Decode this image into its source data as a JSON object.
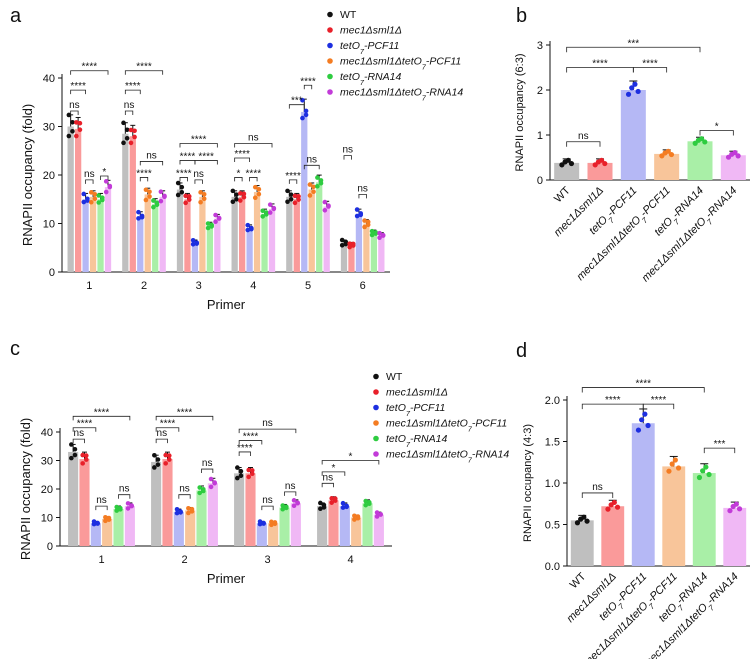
{
  "chart_data": [
    {
      "panel": "a",
      "type": "bar",
      "ylabel": "RNAPII occupancy (fold)",
      "xlabel": "Primer",
      "ylim": [
        0,
        40
      ],
      "yticks": [
        0,
        10,
        20,
        30,
        40
      ],
      "categories": [
        "1",
        "2",
        "3",
        "4",
        "5",
        "6"
      ],
      "legend_position": "top-right",
      "series": [
        {
          "name": "WT",
          "values": [
            30,
            28.5,
            17,
            15.5,
            15.5,
            6
          ]
        },
        {
          "name": "mec1Δsml1Δ",
          "values": [
            29.5,
            28,
            15,
            15.5,
            15,
            5.5
          ]
        },
        {
          "name": "tetO7-PCF11",
          "values": [
            15,
            11.5,
            6,
            9,
            33,
            12
          ]
        },
        {
          "name": "mec1Δsml1ΔtetO7-PCF11",
          "values": [
            15.5,
            16,
            15.5,
            16.5,
            17,
            10
          ]
        },
        {
          "name": "tetO7-RNA14",
          "values": [
            15,
            14,
            9.5,
            12,
            18.5,
            8
          ]
        },
        {
          "name": "mec1Δsml1ΔtetO7-RNA14",
          "values": [
            17.5,
            15.5,
            11,
            13,
            13.5,
            7.5
          ]
        }
      ],
      "significance": [
        "ns",
        "****",
        "****",
        "ns",
        "*",
        "ns",
        "****",
        "****",
        "****",
        "ns",
        "****",
        "****",
        "****",
        "ns",
        "****",
        "*",
        "****",
        "ns",
        "****",
        "****",
        "***",
        "ns",
        "****",
        "ns",
        "ns"
      ]
    },
    {
      "panel": "b",
      "type": "bar",
      "ylabel": "RNAPII occupancy (6:3)",
      "ylim": [
        0,
        3
      ],
      "yticks": [
        0,
        1,
        2,
        3
      ],
      "categories": [
        "WT",
        "mec1Δsml1Δ",
        "tetO7-PCF11",
        "mec1Δsml1ΔtetO7-PCF11",
        "tetO7-RNA14",
        "mec1Δsml1ΔtetO7-RNA14"
      ],
      "values": [
        0.38,
        0.38,
        2.0,
        0.58,
        0.86,
        0.55
      ],
      "significance": [
        "ns",
        "****",
        "****",
        "***",
        "*"
      ]
    },
    {
      "panel": "c",
      "type": "bar",
      "ylabel": "RNAPII occupancy (fold)",
      "xlabel": "Primer",
      "ylim": [
        0,
        40
      ],
      "yticks": [
        0,
        10,
        20,
        30,
        40
      ],
      "categories": [
        "1",
        "2",
        "3",
        "4"
      ],
      "legend_position": "top-right",
      "series": [
        {
          "name": "WT",
          "values": [
            33,
            29.5,
            25.5,
            14
          ]
        },
        {
          "name": "mec1Δsml1Δ",
          "values": [
            30.5,
            30.5,
            25.5,
            16
          ]
        },
        {
          "name": "tetO7-PCF11",
          "values": [
            8,
            12,
            8,
            14
          ]
        },
        {
          "name": "mec1Δsml1ΔtetO7-PCF11",
          "values": [
            9.5,
            12.5,
            8,
            10
          ]
        },
        {
          "name": "tetO7-RNA14",
          "values": [
            13,
            19.5,
            13.5,
            15
          ]
        },
        {
          "name": "mec1Δsml1ΔtetO7-RNA14",
          "values": [
            14,
            22,
            15,
            11
          ]
        }
      ],
      "significance": [
        "ns",
        "****",
        "****",
        "ns",
        "ns",
        "ns",
        "****",
        "****",
        "ns",
        "ns",
        "****",
        "****",
        "ns",
        "ns",
        "ns",
        "ns",
        "*",
        "*"
      ]
    },
    {
      "panel": "d",
      "type": "bar",
      "ylabel": "RNAPII occupancy (4:3)",
      "ylim": [
        0,
        2.0
      ],
      "yticks": [
        0.0,
        0.5,
        1.0,
        1.5,
        2.0
      ],
      "categories": [
        "WT",
        "mec1Δsml1Δ",
        "tetO7-PCF11",
        "mec1Δsml1ΔtetO7-PCF11",
        "tetO7-RNA14",
        "mec1Δsml1ΔtetO7-RNA14"
      ],
      "values": [
        0.55,
        0.72,
        1.72,
        1.2,
        1.12,
        0.7
      ],
      "significance": [
        "ns",
        "****",
        "****",
        "****",
        "***"
      ]
    }
  ],
  "colors": [
    "#9a9a9a",
    "#e8473f",
    "#2a3fd6",
    "#f79a57",
    "#5fd36b",
    "#d78ae6"
  ],
  "light_colors": [
    "#bfbfbf",
    "#fa9a9a",
    "#b5b8f5",
    "#f8c59a",
    "#a9efa7",
    "#f0b8f5"
  ],
  "dot_colors": [
    "#111111",
    "#e8202a",
    "#1d2fe0",
    "#f47c22",
    "#2ecc40",
    "#c23bd8"
  ]
}
